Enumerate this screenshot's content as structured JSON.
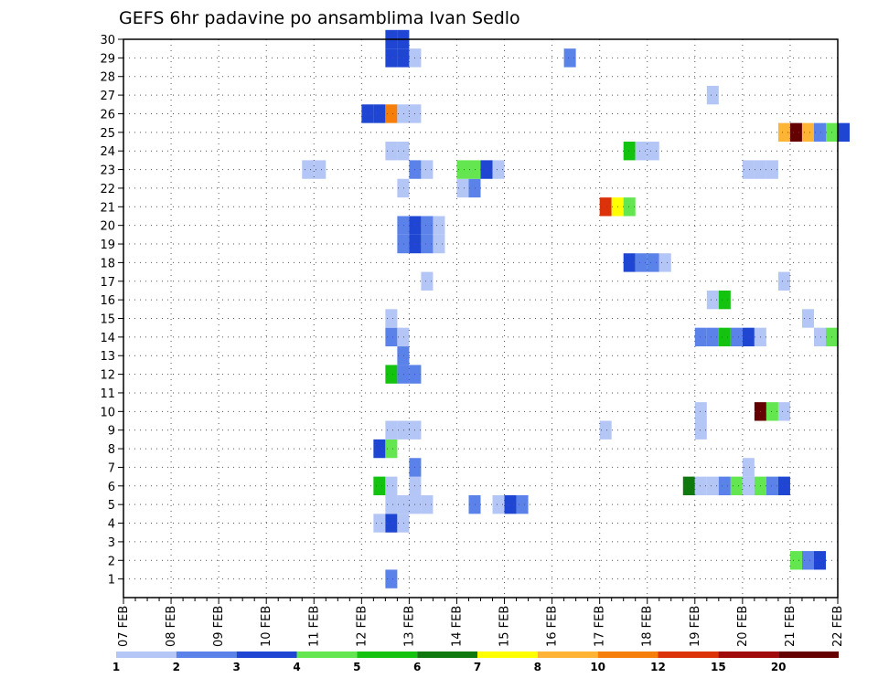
{
  "chart_data": {
    "type": "heatmap",
    "title": "GEFS 6hr padavine po ansamblima Ivan Sedlo",
    "x_ticks": [
      "07 FEB",
      "08 FEB",
      "09 FEB",
      "10 FEB",
      "11 FEB",
      "12 FEB",
      "13 FEB",
      "14 FEB",
      "15 FEB",
      "16 FEB",
      "17 FEB",
      "18 FEB",
      "19 FEB",
      "20 FEB",
      "21 FEB",
      "22 FEB"
    ],
    "y_ticks": [
      1,
      2,
      3,
      4,
      5,
      6,
      7,
      8,
      9,
      10,
      11,
      12,
      13,
      14,
      15,
      16,
      17,
      18,
      19,
      20,
      21,
      22,
      23,
      24,
      25,
      26,
      27,
      28,
      29,
      30
    ],
    "xlim": [
      "07 FEB 00Z",
      "22 FEB 00Z"
    ],
    "ylim": [
      0,
      30
    ],
    "x_unit": "6-hour steps from 07 FEB 00Z",
    "grid": true,
    "legend_position": "bottom",
    "legend": {
      "labels": [
        "1",
        "2",
        "3",
        "4",
        "5",
        "6",
        "7",
        "8",
        "10",
        "12",
        "15",
        "20"
      ],
      "colors": [
        "#b4c6f5",
        "#5a82e8",
        "#1e46d2",
        "#64e650",
        "#14c30f",
        "#0f780f",
        "#ffff00",
        "#ffb436",
        "#f57f0a",
        "#dc320a",
        "#a00a0a",
        "#640000"
      ]
    },
    "cells": [
      {
        "m": 1,
        "t": 22,
        "c": 2
      },
      {
        "m": 2,
        "t": 56,
        "c": 4
      },
      {
        "m": 2,
        "t": 57,
        "c": 2
      },
      {
        "m": 2,
        "t": 58,
        "c": 3
      },
      {
        "m": 4,
        "t": 21,
        "c": 1
      },
      {
        "m": 4,
        "t": 22,
        "c": 3
      },
      {
        "m": 4,
        "t": 23,
        "c": 1
      },
      {
        "m": 5,
        "t": 22,
        "c": 1
      },
      {
        "m": 5,
        "t": 23,
        "c": 1
      },
      {
        "m": 5,
        "t": 24,
        "c": 1
      },
      {
        "m": 5,
        "t": 25,
        "c": 1
      },
      {
        "m": 5,
        "t": 29,
        "c": 2
      },
      {
        "m": 5,
        "t": 31,
        "c": 1
      },
      {
        "m": 5,
        "t": 32,
        "c": 3
      },
      {
        "m": 5,
        "t": 33,
        "c": 2
      },
      {
        "m": 6,
        "t": 21,
        "c": 5
      },
      {
        "m": 6,
        "t": 22,
        "c": 1
      },
      {
        "m": 6,
        "t": 24,
        "c": 1
      },
      {
        "m": 6,
        "t": 47,
        "c": 6
      },
      {
        "m": 6,
        "t": 48,
        "c": 1
      },
      {
        "m": 6,
        "t": 49,
        "c": 1
      },
      {
        "m": 6,
        "t": 50,
        "c": 2
      },
      {
        "m": 6,
        "t": 51,
        "c": 4
      },
      {
        "m": 6,
        "t": 52,
        "c": 1
      },
      {
        "m": 6,
        "t": 53,
        "c": 4
      },
      {
        "m": 6,
        "t": 54,
        "c": 2
      },
      {
        "m": 6,
        "t": 55,
        "c": 3
      },
      {
        "m": 7,
        "t": 24,
        "c": 2
      },
      {
        "m": 7,
        "t": 52,
        "c": 1
      },
      {
        "m": 8,
        "t": 21,
        "c": 3
      },
      {
        "m": 8,
        "t": 22,
        "c": 4
      },
      {
        "m": 9,
        "t": 22,
        "c": 1
      },
      {
        "m": 9,
        "t": 23,
        "c": 1
      },
      {
        "m": 9,
        "t": 24,
        "c": 1
      },
      {
        "m": 9,
        "t": 40,
        "c": 1
      },
      {
        "m": 9,
        "t": 48,
        "c": 1
      },
      {
        "m": 10,
        "t": 48,
        "c": 1
      },
      {
        "m": 10,
        "t": 53,
        "c": 12
      },
      {
        "m": 10,
        "t": 54,
        "c": 4
      },
      {
        "m": 10,
        "t": 55,
        "c": 1
      },
      {
        "m": 12,
        "t": 22,
        "c": 5
      },
      {
        "m": 12,
        "t": 23,
        "c": 2
      },
      {
        "m": 12,
        "t": 24,
        "c": 2
      },
      {
        "m": 13,
        "t": 23,
        "c": 2
      },
      {
        "m": 14,
        "t": 22,
        "c": 2
      },
      {
        "m": 14,
        "t": 23,
        "c": 1
      },
      {
        "m": 14,
        "t": 48,
        "c": 2
      },
      {
        "m": 14,
        "t": 49,
        "c": 2
      },
      {
        "m": 14,
        "t": 50,
        "c": 5
      },
      {
        "m": 14,
        "t": 51,
        "c": 2
      },
      {
        "m": 14,
        "t": 52,
        "c": 3
      },
      {
        "m": 14,
        "t": 53,
        "c": 1
      },
      {
        "m": 14,
        "t": 58,
        "c": 1
      },
      {
        "m": 14,
        "t": 59,
        "c": 4
      },
      {
        "m": 15,
        "t": 22,
        "c": 1
      },
      {
        "m": 15,
        "t": 57,
        "c": 1
      },
      {
        "m": 16,
        "t": 49,
        "c": 1
      },
      {
        "m": 16,
        "t": 50,
        "c": 5
      },
      {
        "m": 17,
        "t": 25,
        "c": 1
      },
      {
        "m": 17,
        "t": 55,
        "c": 1
      },
      {
        "m": 18,
        "t": 42,
        "c": 3
      },
      {
        "m": 18,
        "t": 43,
        "c": 2
      },
      {
        "m": 18,
        "t": 44,
        "c": 2
      },
      {
        "m": 18,
        "t": 45,
        "c": 1
      },
      {
        "m": 19,
        "t": 23,
        "c": 2
      },
      {
        "m": 19,
        "t": 24,
        "c": 3
      },
      {
        "m": 19,
        "t": 25,
        "c": 2
      },
      {
        "m": 19,
        "t": 26,
        "c": 1
      },
      {
        "m": 20,
        "t": 23,
        "c": 2
      },
      {
        "m": 20,
        "t": 24,
        "c": 3
      },
      {
        "m": 20,
        "t": 25,
        "c": 2
      },
      {
        "m": 20,
        "t": 26,
        "c": 1
      },
      {
        "m": 21,
        "t": 40,
        "c": 10
      },
      {
        "m": 21,
        "t": 41,
        "c": 7
      },
      {
        "m": 21,
        "t": 42,
        "c": 4
      },
      {
        "m": 22,
        "t": 23,
        "c": 1
      },
      {
        "m": 22,
        "t": 28,
        "c": 1
      },
      {
        "m": 22,
        "t": 29,
        "c": 2
      },
      {
        "m": 23,
        "t": 15,
        "c": 1
      },
      {
        "m": 23,
        "t": 16,
        "c": 1
      },
      {
        "m": 23,
        "t": 24,
        "c": 2
      },
      {
        "m": 23,
        "t": 25,
        "c": 1
      },
      {
        "m": 23,
        "t": 28,
        "c": 4
      },
      {
        "m": 23,
        "t": 29,
        "c": 4
      },
      {
        "m": 23,
        "t": 30,
        "c": 3
      },
      {
        "m": 23,
        "t": 31,
        "c": 1
      },
      {
        "m": 23,
        "t": 52,
        "c": 1
      },
      {
        "m": 23,
        "t": 53,
        "c": 1
      },
      {
        "m": 23,
        "t": 54,
        "c": 1
      },
      {
        "m": 24,
        "t": 22,
        "c": 1
      },
      {
        "m": 24,
        "t": 23,
        "c": 1
      },
      {
        "m": 24,
        "t": 42,
        "c": 5
      },
      {
        "m": 24,
        "t": 43,
        "c": 1
      },
      {
        "m": 24,
        "t": 44,
        "c": 1
      },
      {
        "m": 25,
        "t": 55,
        "c": 8
      },
      {
        "m": 25,
        "t": 56,
        "c": 12
      },
      {
        "m": 25,
        "t": 57,
        "c": 8
      },
      {
        "m": 25,
        "t": 58,
        "c": 2
      },
      {
        "m": 25,
        "t": 59,
        "c": 4
      },
      {
        "m": 25,
        "t": 60,
        "c": 3
      },
      {
        "m": 26,
        "t": 20,
        "c": 3
      },
      {
        "m": 26,
        "t": 21,
        "c": 3
      },
      {
        "m": 26,
        "t": 22,
        "c": 9
      },
      {
        "m": 26,
        "t": 23,
        "c": 1
      },
      {
        "m": 26,
        "t": 24,
        "c": 1
      },
      {
        "m": 27,
        "t": 49,
        "c": 1
      },
      {
        "m": 29,
        "t": 22,
        "c": 3
      },
      {
        "m": 29,
        "t": 23,
        "c": 3
      },
      {
        "m": 29,
        "t": 24,
        "c": 1
      },
      {
        "m": 29,
        "t": 37,
        "c": 2
      },
      {
        "m": 30,
        "t": 22,
        "c": 3
      },
      {
        "m": 30,
        "t": 23,
        "c": 3
      }
    ]
  }
}
